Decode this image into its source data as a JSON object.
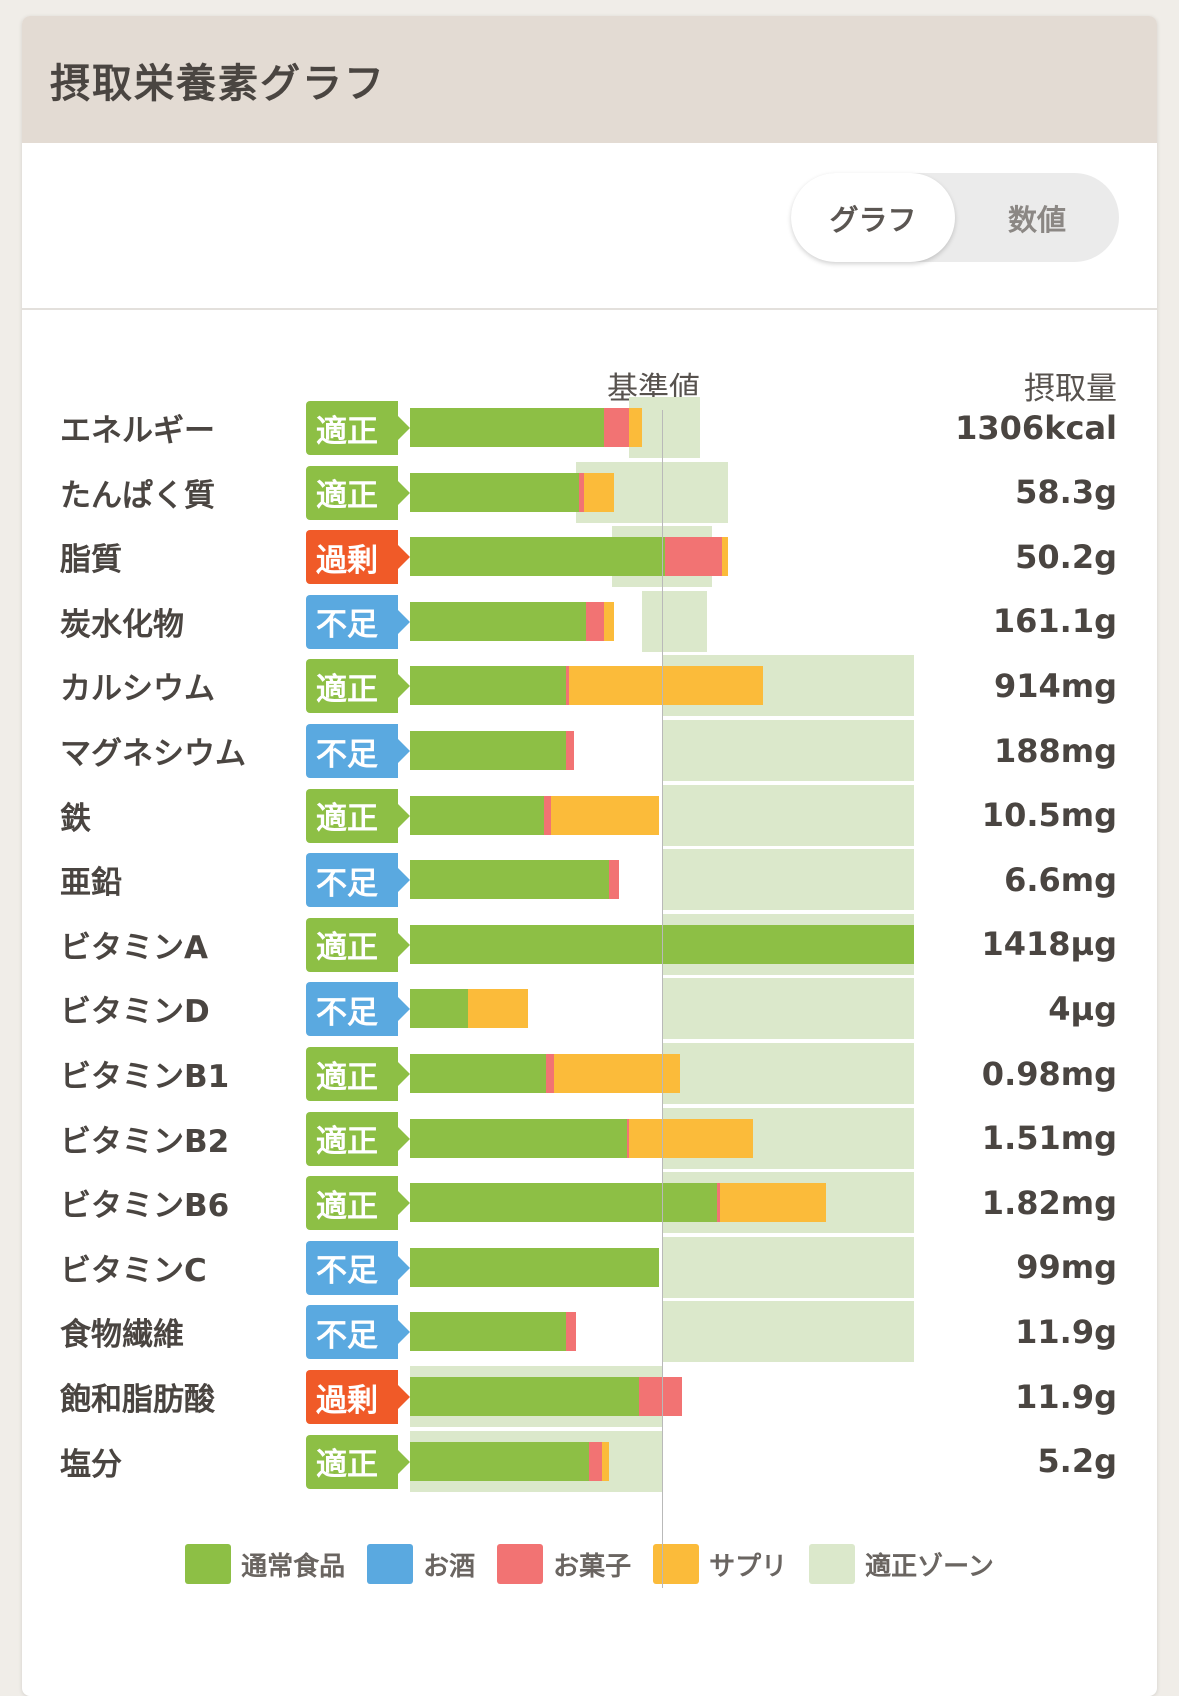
{
  "header": {
    "title": "摂取栄養素グラフ"
  },
  "toggle": {
    "graph_label": "グラフ",
    "numbers_label": "数値",
    "active": "graph"
  },
  "columns": {
    "reference": "基準値",
    "intake": "摂取量"
  },
  "status_colors": {
    "適正": "#8dbf45",
    "過剰": "#f05a28",
    "不足": "#5aa9e0"
  },
  "legend": [
    {
      "label": "通常食品",
      "color": "#8dbf45"
    },
    {
      "label": "お酒",
      "color": "#5aa9e0"
    },
    {
      "label": "お菓子",
      "color": "#f27373"
    },
    {
      "label": "サプリ",
      "color": "#fbbb3a"
    },
    {
      "label": "適正ゾーン",
      "color": "#dbe8cb"
    }
  ],
  "chart_data": {
    "type": "bar",
    "orientation": "horizontal-stacked",
    "reference_percent": 100,
    "series": [
      {
        "name": "通常食品",
        "color": "#8dbf45"
      },
      {
        "name": "お酒",
        "color": "#5aa9e0"
      },
      {
        "name": "お菓子",
        "color": "#f27373"
      },
      {
        "name": "サプリ",
        "color": "#fbbb3a"
      }
    ],
    "nutrients": [
      {
        "name": "エネルギー",
        "status": "適正",
        "value": "1306kcal",
        "zone": [
          87,
          115
        ],
        "parts": [
          77,
          0,
          10,
          5
        ]
      },
      {
        "name": "たんぱく質",
        "status": "適正",
        "value": "58.3g",
        "zone": [
          66,
          126
        ],
        "parts": [
          67,
          0,
          2,
          12
        ]
      },
      {
        "name": "脂質",
        "status": "過剰",
        "value": "50.2g",
        "zone": [
          80,
          120
        ],
        "parts": [
          101,
          0,
          23,
          2
        ]
      },
      {
        "name": "炭水化物",
        "status": "不足",
        "value": "161.1g",
        "zone": [
          92,
          118
        ],
        "parts": [
          70,
          0,
          7,
          4
        ]
      },
      {
        "name": "カルシウム",
        "status": "適正",
        "value": "914mg",
        "zone": [
          100,
          200
        ],
        "parts": [
          62,
          0,
          1,
          77
        ]
      },
      {
        "name": "マグネシウム",
        "status": "不足",
        "value": "188mg",
        "zone": [
          100,
          200
        ],
        "parts": [
          62,
          0,
          3,
          0
        ]
      },
      {
        "name": "鉄",
        "status": "適正",
        "value": "10.5mg",
        "zone": [
          100,
          200
        ],
        "parts": [
          53,
          0,
          3,
          43
        ]
      },
      {
        "name": "亜鉛",
        "status": "不足",
        "value": "6.6mg",
        "zone": [
          100,
          200
        ],
        "parts": [
          79,
          0,
          4,
          0
        ]
      },
      {
        "name": "ビタミンA",
        "status": "適正",
        "value": "1418µg",
        "zone": [
          100,
          200
        ],
        "parts": [
          200,
          0,
          0,
          0
        ]
      },
      {
        "name": "ビタミンD",
        "status": "不足",
        "value": "4µg",
        "zone": [
          100,
          200
        ],
        "parts": [
          23,
          0,
          0,
          24
        ]
      },
      {
        "name": "ビタミンB1",
        "status": "適正",
        "value": "0.98mg",
        "zone": [
          100,
          200
        ],
        "parts": [
          54,
          0,
          3,
          50
        ]
      },
      {
        "name": "ビタミンB2",
        "status": "適正",
        "value": "1.51mg",
        "zone": [
          100,
          200
        ],
        "parts": [
          86,
          0,
          1,
          49
        ]
      },
      {
        "name": "ビタミンB6",
        "status": "適正",
        "value": "1.82mg",
        "zone": [
          100,
          200
        ],
        "parts": [
          122,
          0,
          1,
          42
        ]
      },
      {
        "name": "ビタミンC",
        "status": "不足",
        "value": "99mg",
        "zone": [
          100,
          200
        ],
        "parts": [
          99,
          0,
          0,
          0
        ]
      },
      {
        "name": "食物繊維",
        "status": "不足",
        "value": "11.9g",
        "zone": [
          100,
          200
        ],
        "parts": [
          62,
          0,
          4,
          0
        ]
      },
      {
        "name": "飽和脂肪酸",
        "status": "過剰",
        "value": "11.9g",
        "zone": [
          0,
          100
        ],
        "parts": [
          91,
          0,
          17,
          0
        ]
      },
      {
        "name": "塩分",
        "status": "適正",
        "value": "5.2g",
        "zone": [
          0,
          100
        ],
        "parts": [
          71,
          0,
          5,
          3
        ]
      }
    ]
  }
}
